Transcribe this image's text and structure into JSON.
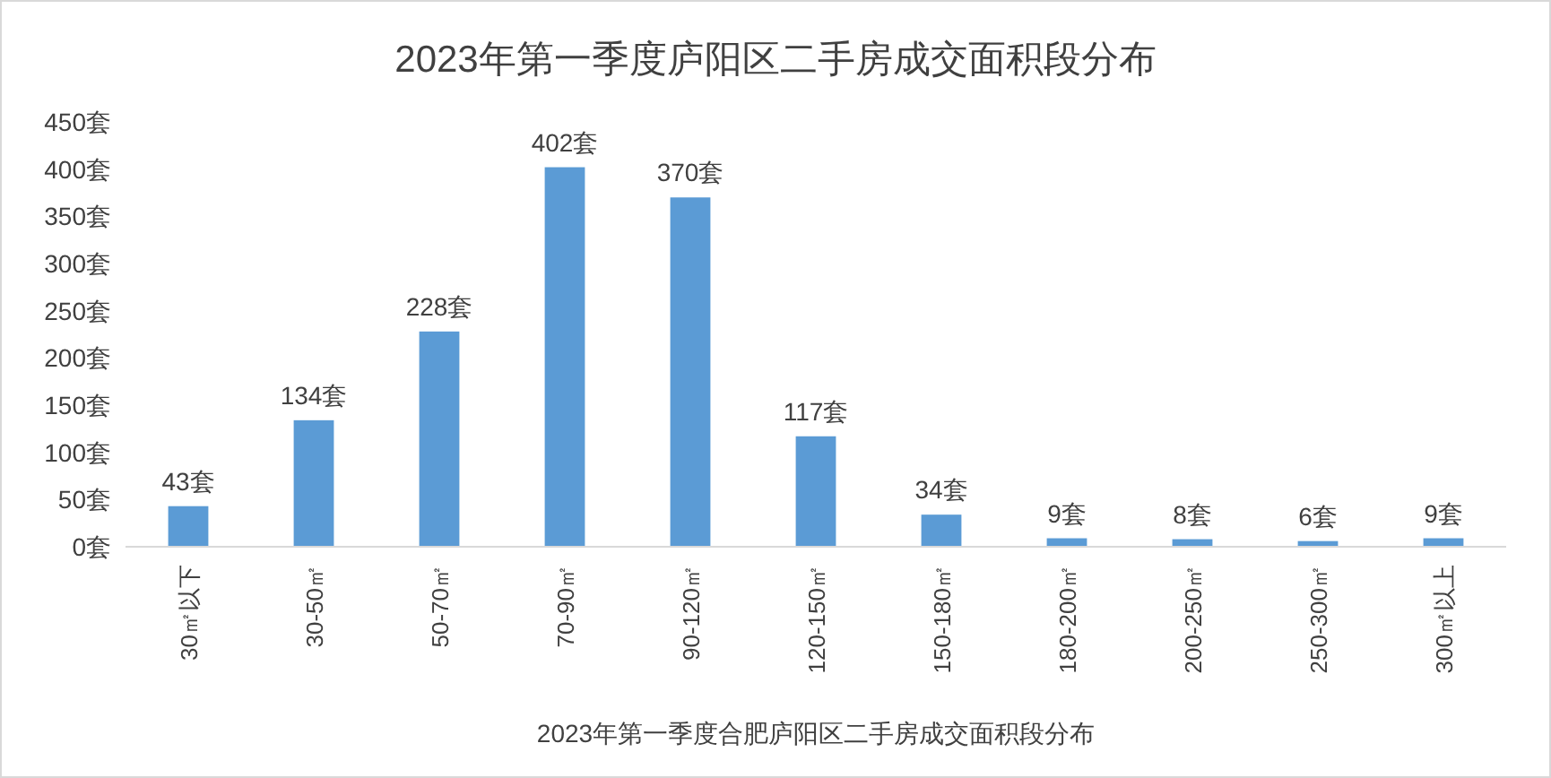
{
  "chart_data": {
    "type": "bar",
    "title": "2023年第一季度庐阳区二手房成交面积段分布",
    "xlabel": "2023年第一季度合肥庐阳区二手房成交面积段分布",
    "categories": [
      "30㎡以下",
      "30-50㎡",
      "50-70㎡",
      "70-90㎡",
      "90-120㎡",
      "120-150㎡",
      "150-180㎡",
      "180-200㎡",
      "200-250㎡",
      "250-300㎡",
      "300㎡以上"
    ],
    "values": [
      43,
      134,
      228,
      402,
      370,
      117,
      34,
      9,
      8,
      6,
      9
    ],
    "value_labels": [
      "43套",
      "134套",
      "228套",
      "402套",
      "370套",
      "117套",
      "34套",
      "9套",
      "8套",
      "6套",
      "9套"
    ],
    "color": "#5b9bd5",
    "ylim": [
      0,
      450
    ],
    "yticks": [
      {
        "value": 0,
        "label": "0套"
      },
      {
        "value": 50,
        "label": "50套"
      },
      {
        "value": 100,
        "label": "100套"
      },
      {
        "value": 150,
        "label": "150套"
      },
      {
        "value": 200,
        "label": "200套"
      },
      {
        "value": 250,
        "label": "250套"
      },
      {
        "value": 300,
        "label": "300套"
      },
      {
        "value": 350,
        "label": "350套"
      },
      {
        "value": 400,
        "label": "400套"
      },
      {
        "value": 450,
        "label": "450套"
      }
    ]
  }
}
